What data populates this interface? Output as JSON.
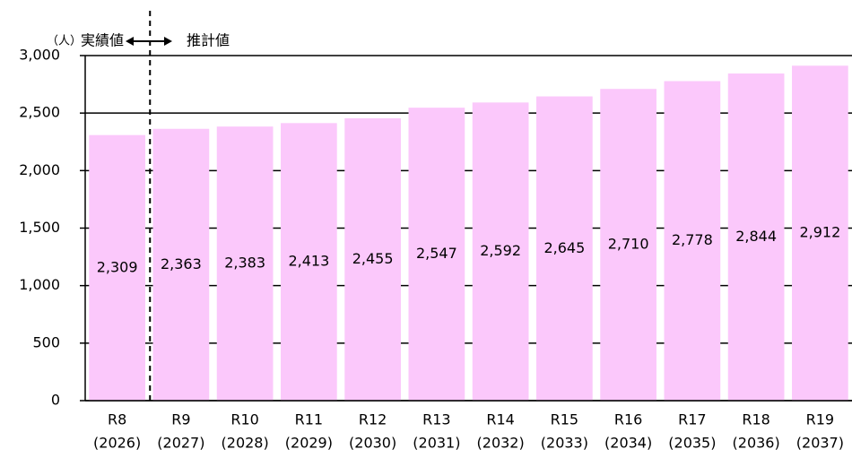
{
  "chart_data": {
    "type": "bar",
    "y_unit": "（人）",
    "annotations": {
      "actual": "実績値",
      "estimate": "推計値"
    },
    "categories": [
      "R8",
      "R9",
      "R10",
      "R11",
      "R12",
      "R13",
      "R14",
      "R15",
      "R16",
      "R17",
      "R18",
      "R19"
    ],
    "category_years": [
      "(2026)",
      "(2027)",
      "(2028)",
      "(2029)",
      "(2030)",
      "(2031)",
      "(2032)",
      "(2033)",
      "(2034)",
      "(2035)",
      "(2036)",
      "(2037)"
    ],
    "values": [
      2309,
      2363,
      2383,
      2413,
      2455,
      2547,
      2592,
      2645,
      2710,
      2778,
      2844,
      2912
    ],
    "value_labels": [
      "2,309",
      "2,363",
      "2,383",
      "2,413",
      "2,455",
      "2,547",
      "2,592",
      "2,645",
      "2,710",
      "2,778",
      "2,844",
      "2,912"
    ],
    "color": "#fbc8fb",
    "ylim": [
      0,
      3000
    ],
    "yticks": [
      0,
      500,
      {
        "value": 1000,
        "label": "1,000"
      },
      {
        "value": 1500,
        "label": "1,500"
      },
      {
        "value": 2000,
        "label": "2,000"
      },
      {
        "value": 2500,
        "label": "2,500"
      },
      {
        "value": 3000,
        "label": "3,000"
      }
    ],
    "grid": true
  }
}
